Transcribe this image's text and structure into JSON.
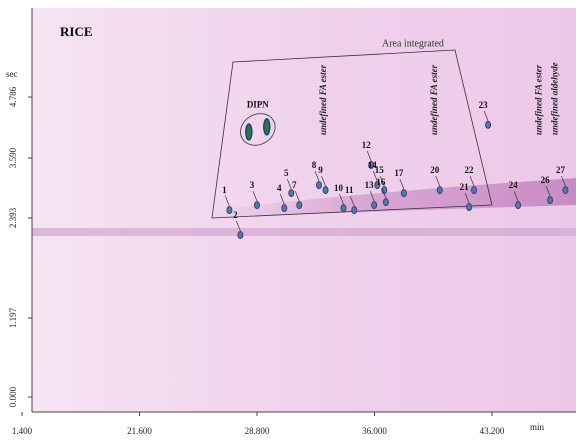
{
  "chart_data": {
    "type": "chromatogram",
    "title": "RICE",
    "xlabel": "min",
    "ylabel": "sec",
    "xticks": [
      {
        "value": 1.4,
        "label": "1.400"
      },
      {
        "value": 21.6,
        "label": "21.600"
      },
      {
        "value": 28.8,
        "label": "28.800"
      },
      {
        "value": 36.0,
        "label": "36.000"
      },
      {
        "value": 43.2,
        "label": "43.200"
      }
    ],
    "yticks": [
      {
        "value": 0,
        "label": "0.000"
      },
      {
        "value": 1.197,
        "label": "1.197"
      },
      {
        "value": 2.393,
        "label": "2.393"
      },
      {
        "value": 3.59,
        "label": "3.590"
      },
      {
        "value": 4.786,
        "label": "4.786"
      }
    ],
    "region_label": "Area integrated",
    "cluster": {
      "label": "DIPN",
      "x": [
        28.3,
        29.4
      ],
      "y": [
        4.1,
        4.2
      ]
    },
    "peaks": [
      {
        "label": "1",
        "x": 27.11,
        "y": 2.55
      },
      {
        "label": "2",
        "x": 27.78,
        "y": 2.19
      },
      {
        "label": "3",
        "x": 28.8,
        "y": 2.65
      },
      {
        "label": "4",
        "x": 30.47,
        "y": 2.59
      },
      {
        "label": "5",
        "x": 30.9,
        "y": 2.89
      },
      {
        "label": "7",
        "x": 31.39,
        "y": 2.65
      },
      {
        "label": "8",
        "x": 32.6,
        "y": 3.05
      },
      {
        "label": "9",
        "x": 33.0,
        "y": 2.95
      },
      {
        "label": "10",
        "x": 34.1,
        "y": 2.59
      },
      {
        "label": "11",
        "x": 34.76,
        "y": 2.55
      },
      {
        "label": "12",
        "x": 35.8,
        "y": 3.45
      },
      {
        "label": "13",
        "x": 35.98,
        "y": 2.65
      },
      {
        "label": "14",
        "x": 36.17,
        "y": 3.05
      },
      {
        "label": "15",
        "x": 36.6,
        "y": 2.95
      },
      {
        "label": "16",
        "x": 36.7,
        "y": 2.71
      },
      {
        "label": "17",
        "x": 37.8,
        "y": 2.89
      },
      {
        "label": "20",
        "x": 40.0,
        "y": 2.95
      },
      {
        "label": "21",
        "x": 41.8,
        "y": 2.61
      },
      {
        "label": "22",
        "x": 42.1,
        "y": 2.95
      },
      {
        "label": "23",
        "x": 42.96,
        "y": 4.24
      },
      {
        "label": "24",
        "x": 44.8,
        "y": 2.65
      },
      {
        "label": "26",
        "x": 46.76,
        "y": 2.75
      },
      {
        "label": "27",
        "x": 47.7,
        "y": 2.95
      }
    ],
    "annotations": [
      {
        "text": "undefined FA ester",
        "x": 32.9
      },
      {
        "text": "undefined FA ester",
        "x": 39.7
      },
      {
        "text": "undefined FA ester",
        "x": 46.1
      },
      {
        "text": "undefined aldehyde",
        "x": 47.1
      }
    ]
  }
}
